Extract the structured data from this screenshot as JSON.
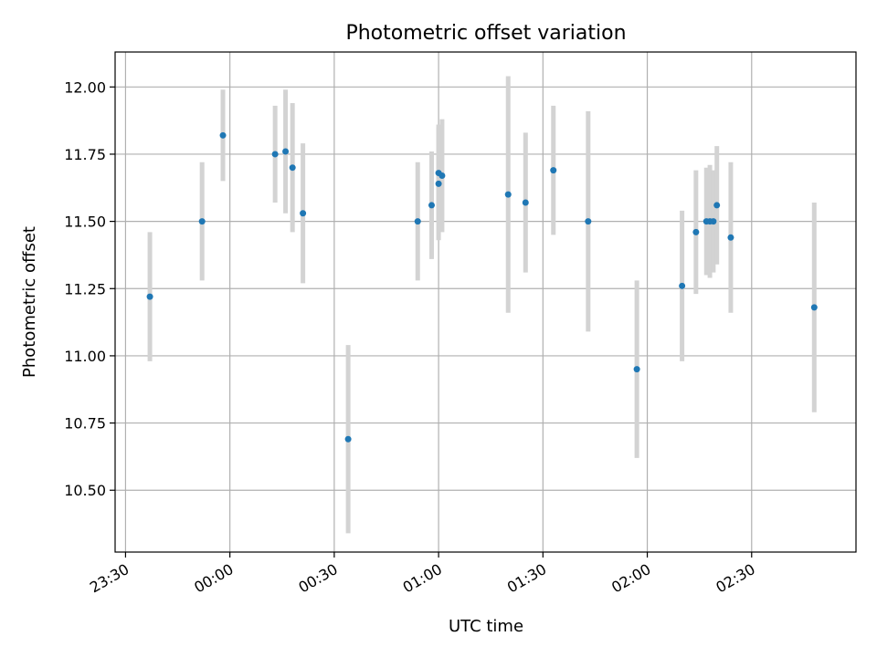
{
  "chart_data": {
    "type": "scatter",
    "title": "Photometric offset variation",
    "xlabel": "UTC time",
    "ylabel": "Photometric offset",
    "x_unit": "HH:MM UTC",
    "xlim": [
      "23:27",
      "03:00"
    ],
    "ylim": [
      10.27,
      12.13
    ],
    "grid": true,
    "x_tick_labels": [
      "23:30",
      "00:00",
      "00:30",
      "01:00",
      "01:30",
      "02:00",
      "02:30"
    ],
    "y_tick_labels": [
      "10.50",
      "10.75",
      "11.00",
      "11.25",
      "11.50",
      "11.75",
      "12.00"
    ],
    "x_ticks": [
      "23:30",
      "00:00",
      "00:30",
      "01:00",
      "01:30",
      "02:00",
      "02:30"
    ],
    "y_ticks": [
      10.5,
      10.75,
      11.0,
      11.25,
      11.5,
      11.75,
      12.0
    ],
    "colors": {
      "point": "#1f77b4",
      "errorbar": "#d3d3d3",
      "grid": "#b0b0b0"
    },
    "points": [
      {
        "x": "23:37",
        "y": 11.22,
        "err": 0.24
      },
      {
        "x": "23:52",
        "y": 11.5,
        "err": 0.22
      },
      {
        "x": "23:58",
        "y": 11.82,
        "err": 0.17
      },
      {
        "x": "00:13",
        "y": 11.75,
        "err": 0.18
      },
      {
        "x": "00:16",
        "y": 11.76,
        "err": 0.23
      },
      {
        "x": "00:18",
        "y": 11.7,
        "err": 0.24
      },
      {
        "x": "00:21",
        "y": 11.53,
        "err": 0.26
      },
      {
        "x": "00:34",
        "y": 10.69,
        "err": 0.35
      },
      {
        "x": "00:54",
        "y": 11.5,
        "err": 0.22
      },
      {
        "x": "00:58",
        "y": 11.56,
        "err": 0.2
      },
      {
        "x": "01:00",
        "y": 11.64,
        "err": 0.21
      },
      {
        "x": "01:00",
        "y": 11.68,
        "err": 0.18
      },
      {
        "x": "01:01",
        "y": 11.67,
        "err": 0.21
      },
      {
        "x": "01:20",
        "y": 11.6,
        "err": 0.44
      },
      {
        "x": "01:25",
        "y": 11.57,
        "err": 0.26
      },
      {
        "x": "01:33",
        "y": 11.69,
        "err": 0.24
      },
      {
        "x": "01:43",
        "y": 11.5,
        "err": 0.41
      },
      {
        "x": "01:57",
        "y": 10.95,
        "err": 0.33
      },
      {
        "x": "02:10",
        "y": 11.26,
        "err": 0.28
      },
      {
        "x": "02:14",
        "y": 11.46,
        "err": 0.23
      },
      {
        "x": "02:17",
        "y": 11.5,
        "err": 0.2
      },
      {
        "x": "02:18",
        "y": 11.5,
        "err": 0.21
      },
      {
        "x": "02:19",
        "y": 11.5,
        "err": 0.19
      },
      {
        "x": "02:20",
        "y": 11.56,
        "err": 0.22
      },
      {
        "x": "02:24",
        "y": 11.44,
        "err": 0.28
      },
      {
        "x": "02:48",
        "y": 11.18,
        "err": 0.39
      }
    ]
  }
}
